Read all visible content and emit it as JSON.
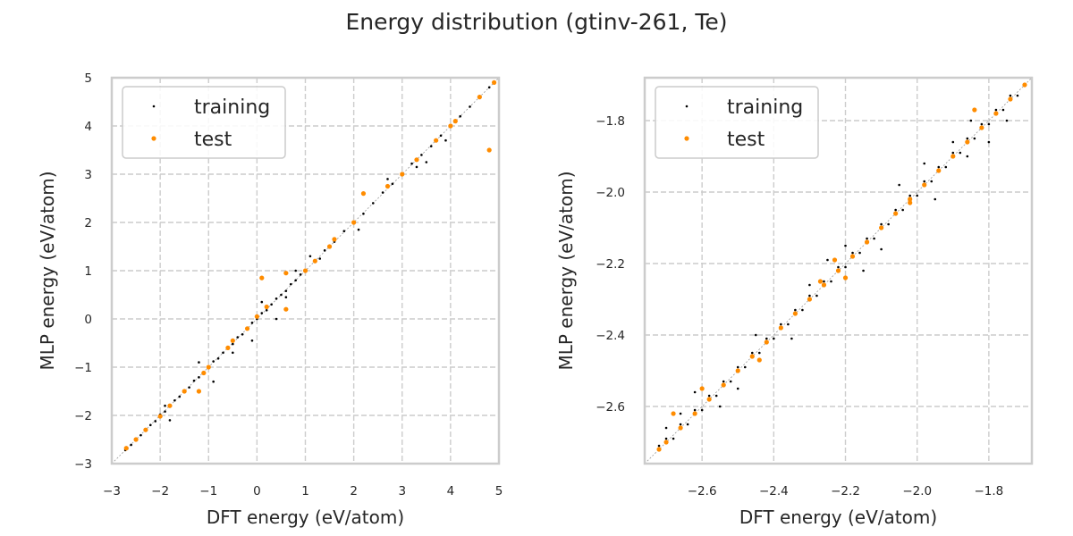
{
  "figure": {
    "title": "Energy distribution (gtinv-261, Te)"
  },
  "colors": {
    "training": "#000000",
    "test": "#ff8c00",
    "grid": "#cccccc",
    "frame": "#cccccc",
    "diagonal": "#999999"
  },
  "chart_data": [
    {
      "type": "scatter",
      "title": "",
      "xlabel": "DFT energy (eV/atom)",
      "ylabel": "MLP energy (eV/atom)",
      "xlim": [
        -3,
        5
      ],
      "ylim": [
        -3,
        5
      ],
      "xticks": [
        -3,
        -2,
        -1,
        0,
        1,
        2,
        3,
        4,
        5
      ],
      "yticks": [
        -3,
        -2,
        -1,
        0,
        1,
        2,
        3,
        4,
        5
      ],
      "xtick_labels": [
        "−3",
        "−2",
        "−1",
        "0",
        "1",
        "2",
        "3",
        "4",
        "5"
      ],
      "ytick_labels": [
        "−3",
        "−2",
        "−1",
        "0",
        "1",
        "2",
        "3",
        "4",
        "5"
      ],
      "grid": true,
      "legend_position": "top-left",
      "diagonal": true,
      "series": [
        {
          "name": "training",
          "x": [
            -2.72,
            -2.68,
            -2.6,
            -2.5,
            -2.4,
            -2.3,
            -2.2,
            -2.1,
            -2.0,
            -1.9,
            -1.8,
            -1.7,
            -1.6,
            -1.5,
            -1.4,
            -1.3,
            -1.2,
            -1.1,
            -1.0,
            -0.9,
            -0.8,
            -0.7,
            -0.6,
            -0.5,
            -0.4,
            -0.3,
            -0.2,
            -0.1,
            0.0,
            0.1,
            0.2,
            0.3,
            0.4,
            0.5,
            0.6,
            0.7,
            0.8,
            0.9,
            1.0,
            1.2,
            1.4,
            1.6,
            1.8,
            2.0,
            2.2,
            2.4,
            2.6,
            2.8,
            3.0,
            3.2,
            3.4,
            3.6,
            3.8,
            4.0,
            4.2,
            4.4,
            4.6,
            4.8,
            4.9,
            -1.8,
            -1.2,
            -0.5,
            0.1,
            0.6,
            -0.1,
            0.8,
            1.3,
            2.1,
            2.7,
            3.3,
            3.5,
            -1.9,
            -0.9,
            0.4,
            1.1,
            3.9
          ],
          "y": [
            -2.72,
            -2.69,
            -2.61,
            -2.52,
            -2.41,
            -2.29,
            -2.2,
            -2.12,
            -1.98,
            -1.92,
            -1.82,
            -1.69,
            -1.61,
            -1.49,
            -1.42,
            -1.28,
            -1.21,
            -1.1,
            -1.02,
            -0.88,
            -0.82,
            -0.7,
            -0.58,
            -0.52,
            -0.38,
            -0.32,
            -0.2,
            -0.08,
            0.0,
            0.12,
            0.18,
            0.3,
            0.42,
            0.5,
            0.58,
            0.72,
            0.8,
            0.92,
            1.0,
            1.18,
            1.42,
            1.6,
            1.82,
            2.0,
            2.18,
            2.4,
            2.62,
            2.8,
            2.98,
            3.22,
            3.4,
            3.58,
            3.8,
            4.02,
            4.2,
            4.4,
            4.62,
            4.8,
            4.9,
            -2.1,
            -0.9,
            -0.7,
            0.35,
            0.45,
            -0.45,
            1.0,
            1.25,
            1.85,
            2.9,
            3.15,
            3.25,
            -1.8,
            -1.3,
            0.0,
            1.3,
            3.7
          ]
        },
        {
          "name": "test",
          "x": [
            -2.7,
            -2.5,
            -2.3,
            -2.0,
            -1.8,
            -1.5,
            -1.2,
            -1.1,
            -1.0,
            -0.6,
            -0.5,
            -0.2,
            0.0,
            0.1,
            0.2,
            0.6,
            0.6,
            1.0,
            1.2,
            1.5,
            1.6,
            2.0,
            2.2,
            2.7,
            3.0,
            3.3,
            3.7,
            4.0,
            4.1,
            4.6,
            4.8,
            4.9
          ],
          "y": [
            -2.68,
            -2.5,
            -2.3,
            -2.02,
            -1.8,
            -1.5,
            -1.5,
            -1.12,
            -1.0,
            -0.6,
            -0.45,
            -0.2,
            0.05,
            0.85,
            0.25,
            0.2,
            0.95,
            1.0,
            1.2,
            1.5,
            1.65,
            2.0,
            2.6,
            2.75,
            3.0,
            3.3,
            3.7,
            4.0,
            4.1,
            4.6,
            3.5,
            4.9
          ]
        }
      ]
    },
    {
      "type": "scatter",
      "title": "",
      "xlabel": "DFT energy (eV/atom)",
      "ylabel": "MLP energy (eV/atom)",
      "xlim": [
        -2.76,
        -1.68
      ],
      "ylim": [
        -2.76,
        -1.68
      ],
      "xticks": [
        -2.6,
        -2.4,
        -2.2,
        -2.0,
        -1.8
      ],
      "yticks": [
        -2.6,
        -2.4,
        -2.2,
        -2.0,
        -1.8
      ],
      "xtick_labels": [
        "−2.6",
        "−2.4",
        "−2.2",
        "−2.0",
        "−1.8"
      ],
      "ytick_labels": [
        "−2.6",
        "−2.4",
        "−2.2",
        "−2.0",
        "−1.8"
      ],
      "grid": true,
      "legend_position": "top-left",
      "diagonal": true,
      "series": [
        {
          "name": "training",
          "x": [
            -2.72,
            -2.7,
            -2.68,
            -2.66,
            -2.64,
            -2.62,
            -2.6,
            -2.58,
            -2.56,
            -2.54,
            -2.52,
            -2.5,
            -2.48,
            -2.46,
            -2.44,
            -2.42,
            -2.4,
            -2.38,
            -2.36,
            -2.34,
            -2.32,
            -2.3,
            -2.28,
            -2.26,
            -2.24,
            -2.22,
            -2.2,
            -2.18,
            -2.16,
            -2.14,
            -2.12,
            -2.1,
            -2.08,
            -2.06,
            -2.04,
            -2.02,
            -2.0,
            -1.98,
            -1.96,
            -1.94,
            -1.92,
            -1.9,
            -1.88,
            -1.86,
            -1.84,
            -1.82,
            -1.8,
            -1.78,
            -1.76,
            -1.74,
            -1.72,
            -1.7,
            -2.62,
            -2.55,
            -2.45,
            -2.35,
            -2.25,
            -2.15,
            -2.05,
            -1.95,
            -1.85,
            -1.75,
            -2.66,
            -2.5,
            -2.3,
            -2.1,
            -1.98,
            -1.86,
            -2.7,
            -2.2,
            -1.9,
            -1.8
          ],
          "y": [
            -2.71,
            -2.69,
            -2.69,
            -2.65,
            -2.65,
            -2.61,
            -2.61,
            -2.57,
            -2.57,
            -2.53,
            -2.53,
            -2.49,
            -2.49,
            -2.45,
            -2.45,
            -2.41,
            -2.41,
            -2.37,
            -2.37,
            -2.33,
            -2.33,
            -2.29,
            -2.29,
            -2.25,
            -2.25,
            -2.21,
            -2.21,
            -2.17,
            -2.17,
            -2.13,
            -2.13,
            -2.09,
            -2.09,
            -2.05,
            -2.05,
            -2.01,
            -2.01,
            -1.97,
            -1.97,
            -1.93,
            -1.93,
            -1.89,
            -1.89,
            -1.85,
            -1.85,
            -1.81,
            -1.81,
            -1.77,
            -1.77,
            -1.73,
            -1.73,
            -1.7,
            -2.56,
            -2.6,
            -2.4,
            -2.41,
            -2.19,
            -2.22,
            -1.98,
            -2.02,
            -1.8,
            -1.8,
            -2.62,
            -2.55,
            -2.26,
            -2.16,
            -1.92,
            -1.9,
            -2.66,
            -2.15,
            -1.86,
            -1.86
          ]
        },
        {
          "name": "test",
          "x": [
            -2.72,
            -2.7,
            -2.66,
            -2.62,
            -2.58,
            -2.54,
            -2.5,
            -2.46,
            -2.42,
            -2.38,
            -2.34,
            -2.3,
            -2.26,
            -2.22,
            -2.18,
            -2.14,
            -2.1,
            -2.06,
            -2.02,
            -1.98,
            -1.94,
            -1.9,
            -1.86,
            -1.82,
            -1.78,
            -1.74,
            -1.7,
            -2.68,
            -2.6,
            -2.44,
            -2.27,
            -2.23,
            -2.2,
            -2.02,
            -1.84
          ],
          "y": [
            -2.72,
            -2.7,
            -2.66,
            -2.62,
            -2.58,
            -2.54,
            -2.5,
            -2.46,
            -2.42,
            -2.38,
            -2.34,
            -2.3,
            -2.26,
            -2.22,
            -2.18,
            -2.14,
            -2.1,
            -2.06,
            -2.02,
            -1.98,
            -1.94,
            -1.9,
            -1.86,
            -1.82,
            -1.78,
            -1.74,
            -1.7,
            -2.62,
            -2.55,
            -2.47,
            -2.25,
            -2.19,
            -2.24,
            -2.03,
            -1.77
          ]
        }
      ]
    }
  ]
}
